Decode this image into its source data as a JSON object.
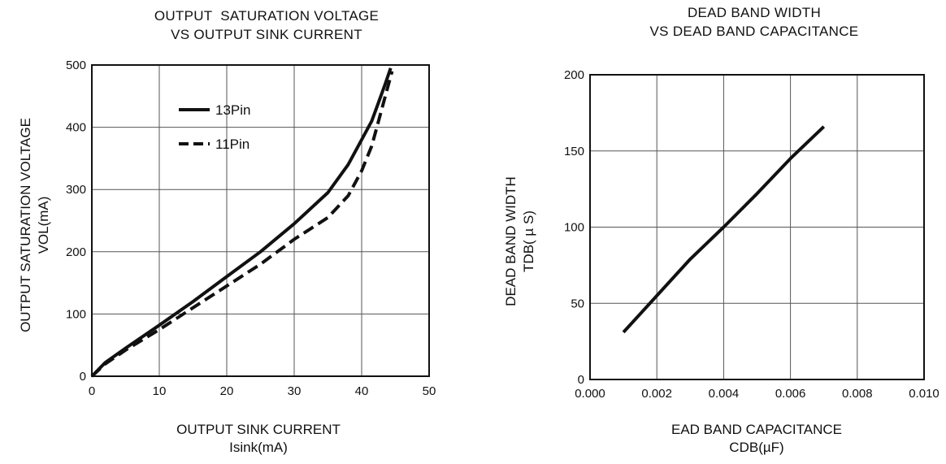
{
  "chart_data": [
    {
      "type": "line",
      "title": [
        "OUTPUT  SATURATION VOLTAGE",
        "VS OUTPUT SINK CURRENT"
      ],
      "xlabel": [
        "OUTPUT SINK CURRENT",
        "Isink(mA)"
      ],
      "ylabel": [
        "OUTPUT SATURATION VOLTAGE",
        "VOL(mA)"
      ],
      "xlim": [
        0,
        50
      ],
      "ylim": [
        0,
        500
      ],
      "xticks": [
        "0",
        "10",
        "20",
        "30",
        "40",
        "50"
      ],
      "yticks": [
        "0",
        "100",
        "200",
        "300",
        "400",
        "500"
      ],
      "grid": true,
      "legend_position": "upper-left",
      "series": [
        {
          "name": "13Pin",
          "style": "solid",
          "x": [
            0,
            2,
            5,
            10,
            15,
            20,
            25,
            30,
            35,
            38,
            40,
            41.5,
            42.5,
            43.5,
            44.3
          ],
          "y": [
            0,
            22,
            45,
            82,
            120,
            160,
            200,
            245,
            295,
            340,
            380,
            410,
            440,
            470,
            495
          ]
        },
        {
          "name": "11Pin",
          "style": "dashed",
          "x": [
            0,
            2,
            5,
            10,
            15,
            20,
            25,
            30,
            35,
            38,
            40,
            41.5,
            42.5,
            43.5,
            44.5
          ],
          "y": [
            0,
            20,
            42,
            75,
            110,
            145,
            180,
            220,
            255,
            290,
            330,
            370,
            410,
            450,
            490
          ]
        }
      ]
    },
    {
      "type": "line",
      "title": [
        "DEAD BAND WIDTH",
        "VS DEAD BAND CAPACITANCE"
      ],
      "xlabel": [
        "EAD BAND CAPACITANCE",
        "CDB(µF)"
      ],
      "ylabel": [
        "DEAD BAND WIDTH",
        "TDB( µ S)"
      ],
      "xlim": [
        0,
        0.01
      ],
      "ylim": [
        0,
        200
      ],
      "xticks": [
        "0.000",
        "0.002",
        "0.004",
        "0.006",
        "0.008",
        "0.010"
      ],
      "yticks": [
        "0",
        "50",
        "100",
        "150",
        "200"
      ],
      "grid": true,
      "series": [
        {
          "style": "solid",
          "x": [
            0.001,
            0.002,
            0.003,
            0.004,
            0.005,
            0.006,
            0.007
          ],
          "y": [
            31,
            55,
            79,
            100,
            122,
            145,
            166
          ]
        }
      ]
    }
  ]
}
